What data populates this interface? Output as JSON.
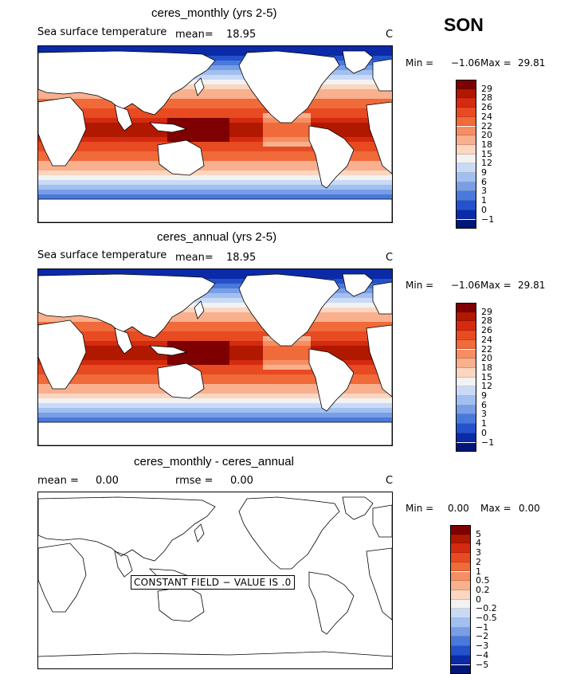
{
  "season": "SON",
  "panels": [
    {
      "title": "ceres_monthly (yrs 2-5)",
      "variable": "Sea surface temperature",
      "mean_label": "mean=",
      "mean_value": "18.95",
      "units": "C",
      "min_label": "Min =",
      "min_value": "−1.06",
      "max_label": "Max =",
      "max_value": "29.81",
      "levels": [
        "29",
        "28",
        "26",
        "24",
        "22",
        "20",
        "18",
        "15",
        "12",
        "9",
        "6",
        "3",
        "1",
        "0",
        "−1"
      ]
    },
    {
      "title": "ceres_annual (yrs 2-5)",
      "variable": "Sea surface temperature",
      "mean_label": "mean=",
      "mean_value": "18.95",
      "units": "C",
      "min_label": "Min =",
      "min_value": "−1.06",
      "max_label": "Max =",
      "max_value": "29.81",
      "levels": [
        "29",
        "28",
        "26",
        "24",
        "22",
        "20",
        "18",
        "15",
        "12",
        "9",
        "6",
        "3",
        "1",
        "0",
        "−1"
      ]
    },
    {
      "title": "ceres_monthly - ceres_annual",
      "mean_label": "mean =",
      "mean_value": "0.00",
      "rmse_label": "rmse =",
      "rmse_value": "0.00",
      "units": "C",
      "min_label": "Min =",
      "min_value": "0.00",
      "max_label": "Max =",
      "max_value": "0.00",
      "constant_note": "CONSTANT FIELD − VALUE IS .0",
      "levels": [
        "5",
        "4",
        "3",
        "2",
        "1",
        "0.5",
        "0.2",
        "0",
        "−0.2",
        "−0.5",
        "−1",
        "−2",
        "−3",
        "−4",
        "−5"
      ]
    }
  ],
  "colors": {
    "scale": [
      "#7f0000",
      "#b01800",
      "#d42a10",
      "#e84a22",
      "#f06a3a",
      "#f58e62",
      "#f8b08e",
      "#fbd6c0",
      "#f2f2f2",
      "#c9daf6",
      "#a1bff0",
      "#789ee6",
      "#4a79dc",
      "#2452cc",
      "#0a2aa8",
      "#001678"
    ]
  },
  "chart_data": [
    {
      "type": "heatmap",
      "title": "ceres_monthly (yrs 2-5)",
      "variable": "Sea surface temperature",
      "units": "C",
      "mean": 18.95,
      "min": -1.06,
      "max": 29.81,
      "contour_levels": [
        -1,
        0,
        1,
        3,
        6,
        9,
        12,
        15,
        18,
        20,
        22,
        24,
        26,
        28,
        29
      ]
    },
    {
      "type": "heatmap",
      "title": "ceres_annual (yrs 2-5)",
      "variable": "Sea surface temperature",
      "units": "C",
      "mean": 18.95,
      "min": -1.06,
      "max": 29.81,
      "contour_levels": [
        -1,
        0,
        1,
        3,
        6,
        9,
        12,
        15,
        18,
        20,
        22,
        24,
        26,
        28,
        29
      ]
    },
    {
      "type": "heatmap",
      "title": "ceres_monthly - ceres_annual",
      "units": "C",
      "mean": 0.0,
      "rmse": 0.0,
      "min": 0.0,
      "max": 0.0,
      "contour_levels": [
        -5,
        -4,
        -3,
        -2,
        -1,
        -0.5,
        -0.2,
        0,
        0.2,
        0.5,
        1,
        2,
        3,
        4,
        5
      ],
      "note": "CONSTANT FIELD - VALUE IS .0"
    }
  ]
}
